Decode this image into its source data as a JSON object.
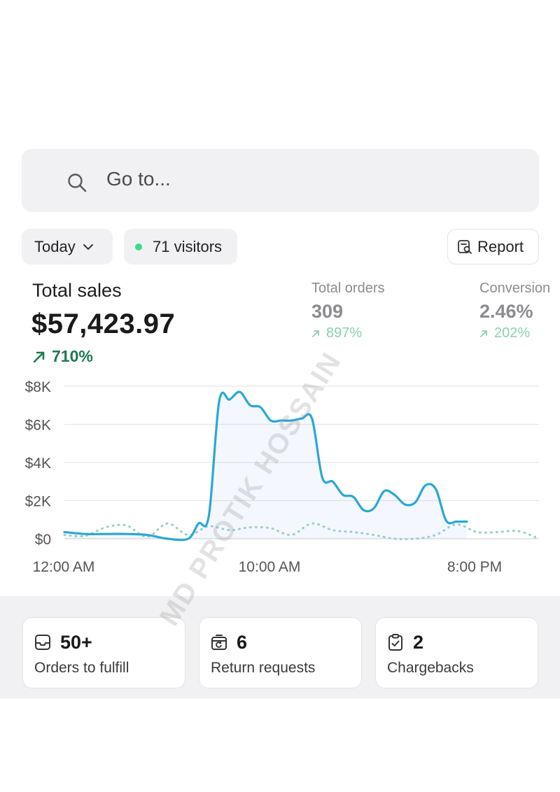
{
  "search": {
    "placeholder": "Go to..."
  },
  "filters": {
    "date_label": "Today",
    "visitors_label": "71 visitors",
    "report_label": "Report"
  },
  "metrics": {
    "total_sales": {
      "label": "Total sales",
      "value": "$57,423.97",
      "delta": "710%"
    },
    "total_orders": {
      "label": "Total orders",
      "value": "309",
      "delta": "897%"
    },
    "conversion": {
      "label": "Conversion",
      "value": "2.46%",
      "delta": "202%"
    }
  },
  "chart_data": {
    "type": "line",
    "y_ticks": [
      "$8K",
      "$6K",
      "$4K",
      "$2K",
      "$0"
    ],
    "ylim": [
      0,
      8000
    ],
    "x_ticks": [
      "12:00 AM",
      "10:00 AM",
      "8:00 PM"
    ],
    "series": [
      {
        "style": "solid",
        "color": "#2aa8d4",
        "x": [
          0,
          1,
          2,
          3,
          4,
          5,
          6,
          6.5,
          7,
          7.5,
          8,
          8.5,
          9,
          9.5,
          10,
          10.5,
          11,
          11.5,
          12,
          12.5,
          13,
          13.5,
          14,
          14.5,
          15,
          15.5,
          16,
          16.5,
          17,
          17.5,
          18,
          18.5,
          19,
          19.5
        ],
        "values": [
          350,
          250,
          250,
          250,
          200,
          0,
          0,
          800,
          1200,
          7200,
          7300,
          7700,
          7000,
          6900,
          6200,
          6200,
          6200,
          6300,
          6300,
          3200,
          3000,
          2300,
          2200,
          1500,
          1600,
          2500,
          2300,
          1800,
          1900,
          2800,
          2600,
          950,
          900,
          900
        ]
      },
      {
        "style": "dotted",
        "color": "#96cfcb",
        "x": [
          0,
          1,
          2,
          3,
          4,
          5,
          6,
          7,
          8,
          9,
          10,
          11,
          12,
          13,
          14,
          15,
          16,
          17,
          18,
          19,
          20,
          21,
          22,
          23
        ],
        "values": [
          200,
          150,
          600,
          700,
          100,
          800,
          200,
          650,
          450,
          600,
          550,
          200,
          800,
          450,
          350,
          200,
          0,
          0,
          200,
          750,
          350,
          350,
          400,
          0
        ]
      }
    ]
  },
  "cards": [
    {
      "icon": "inbox-icon",
      "count": "50+",
      "title": "Orders to fulfill"
    },
    {
      "icon": "return-box-icon",
      "count": "6",
      "title": "Return requests"
    },
    {
      "icon": "clipboard-check-icon",
      "count": "2",
      "title": "Chargebacks"
    }
  ],
  "watermark": "MD PROTIK HOSSAIN",
  "colors": {
    "accent_line": "#2aa8d4",
    "positive": "#1e7a4d",
    "positive_muted": "#8fcfae",
    "visitor_dot": "#41d98a"
  }
}
